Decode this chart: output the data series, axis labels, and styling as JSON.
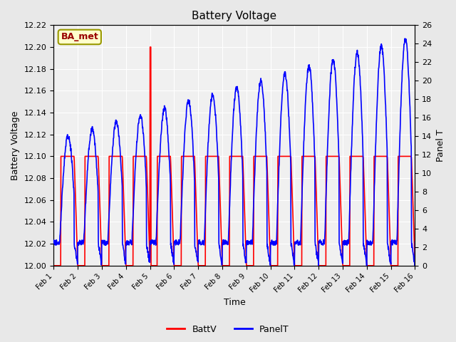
{
  "title": "Battery Voltage",
  "xlabel": "Time",
  "ylabel_left": "Battery Voltage",
  "ylabel_right": "Panel T",
  "annotation_text": "BA_met",
  "annotation_bg": "#ffffcc",
  "annotation_border": "#999900",
  "annotation_fg": "#990000",
  "left_ylim": [
    12.0,
    12.22
  ],
  "right_ylim": [
    0,
    26
  ],
  "right_yticks": [
    0,
    2,
    4,
    6,
    8,
    10,
    12,
    14,
    16,
    18,
    20,
    22,
    24,
    26
  ],
  "left_yticks": [
    12.0,
    12.02,
    12.04,
    12.06,
    12.08,
    12.1,
    12.12,
    12.14,
    12.16,
    12.18,
    12.2,
    12.22
  ],
  "xtick_labels": [
    "Feb 1",
    "Feb 2",
    "Feb 3",
    "Feb 4",
    "Feb 5",
    "Feb 6",
    "Feb 7",
    "Feb 8",
    "Feb 9",
    "Feb 10",
    "Feb 11",
    "Feb 12",
    "Feb 13",
    "Feb 14",
    "Feb 15",
    "Feb 16"
  ],
  "battv_color": "#ff0000",
  "panelt_color": "#0000ff",
  "bg_color": "#e8e8e8",
  "plot_bg_color": "#f0f0f0",
  "legend_battv": "BattV",
  "legend_panelt": "PanelT",
  "grid_color": "#ffffff",
  "n_days": 15
}
